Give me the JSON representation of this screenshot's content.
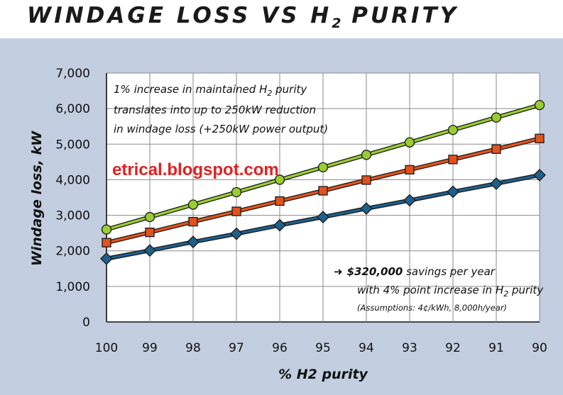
{
  "title": {
    "prefix": "WINDAGE LOSS VS H",
    "sub": "2",
    "suffix": " PURITY"
  },
  "watermark": "etrical.blogspot.com",
  "annotation_top": {
    "line1_pre": "1% increase in maintained H",
    "line1_sub": "2",
    "line1_post": " purity",
    "line2": "translates into up to 250kW reduction",
    "line3": "in windage loss (+250kW power output)"
  },
  "annotation_bottom": {
    "arrow": "➜",
    "amount": "$320,000",
    "line1_post": " savings per year",
    "line2_pre": "with 4% point increase in H",
    "line2_sub": "2",
    "line2_post": " purity",
    "line3": "(Assumptions: 4¢/kWh, 8,000h/year)"
  },
  "colors": {
    "green": "#9acd32",
    "orange": "#e2531c",
    "blue": "#1f5f8b",
    "plot_bg": "#ffffff",
    "grid": "#8a8a8a"
  },
  "chart_data": {
    "type": "line",
    "title": "WINDAGE LOSS VS H2 PURITY",
    "xlabel": "% H2 purity",
    "ylabel": "Windage loss, kW",
    "x": [
      100,
      99,
      98,
      97,
      96,
      95,
      94,
      93,
      92,
      91,
      90
    ],
    "x_reversed": true,
    "xlim": [
      100,
      90
    ],
    "ylim": [
      0,
      7000
    ],
    "yticks": [
      "0",
      "1,000",
      "2,000",
      "3,000",
      "4,000",
      "5,000",
      "6,000",
      "7,000"
    ],
    "xticks": [
      "100",
      "99",
      "98",
      "97",
      "96",
      "95",
      "94",
      "93",
      "92",
      "91",
      "90"
    ],
    "grid": true,
    "series": [
      {
        "color": "#9acd32",
        "marker": "circle",
        "values": [
          2600,
          2950,
          3300,
          3650,
          4000,
          4350,
          4700,
          5050,
          5400,
          5750,
          6100
        ]
      },
      {
        "color": "#e2531c",
        "marker": "square",
        "values": [
          2230,
          2520,
          2820,
          3110,
          3400,
          3690,
          3990,
          4280,
          4570,
          4860,
          5160
        ]
      },
      {
        "color": "#1f5f8b",
        "marker": "diamond",
        "values": [
          1780,
          2010,
          2250,
          2480,
          2720,
          2950,
          3190,
          3420,
          3660,
          3890,
          4130
        ]
      }
    ]
  }
}
